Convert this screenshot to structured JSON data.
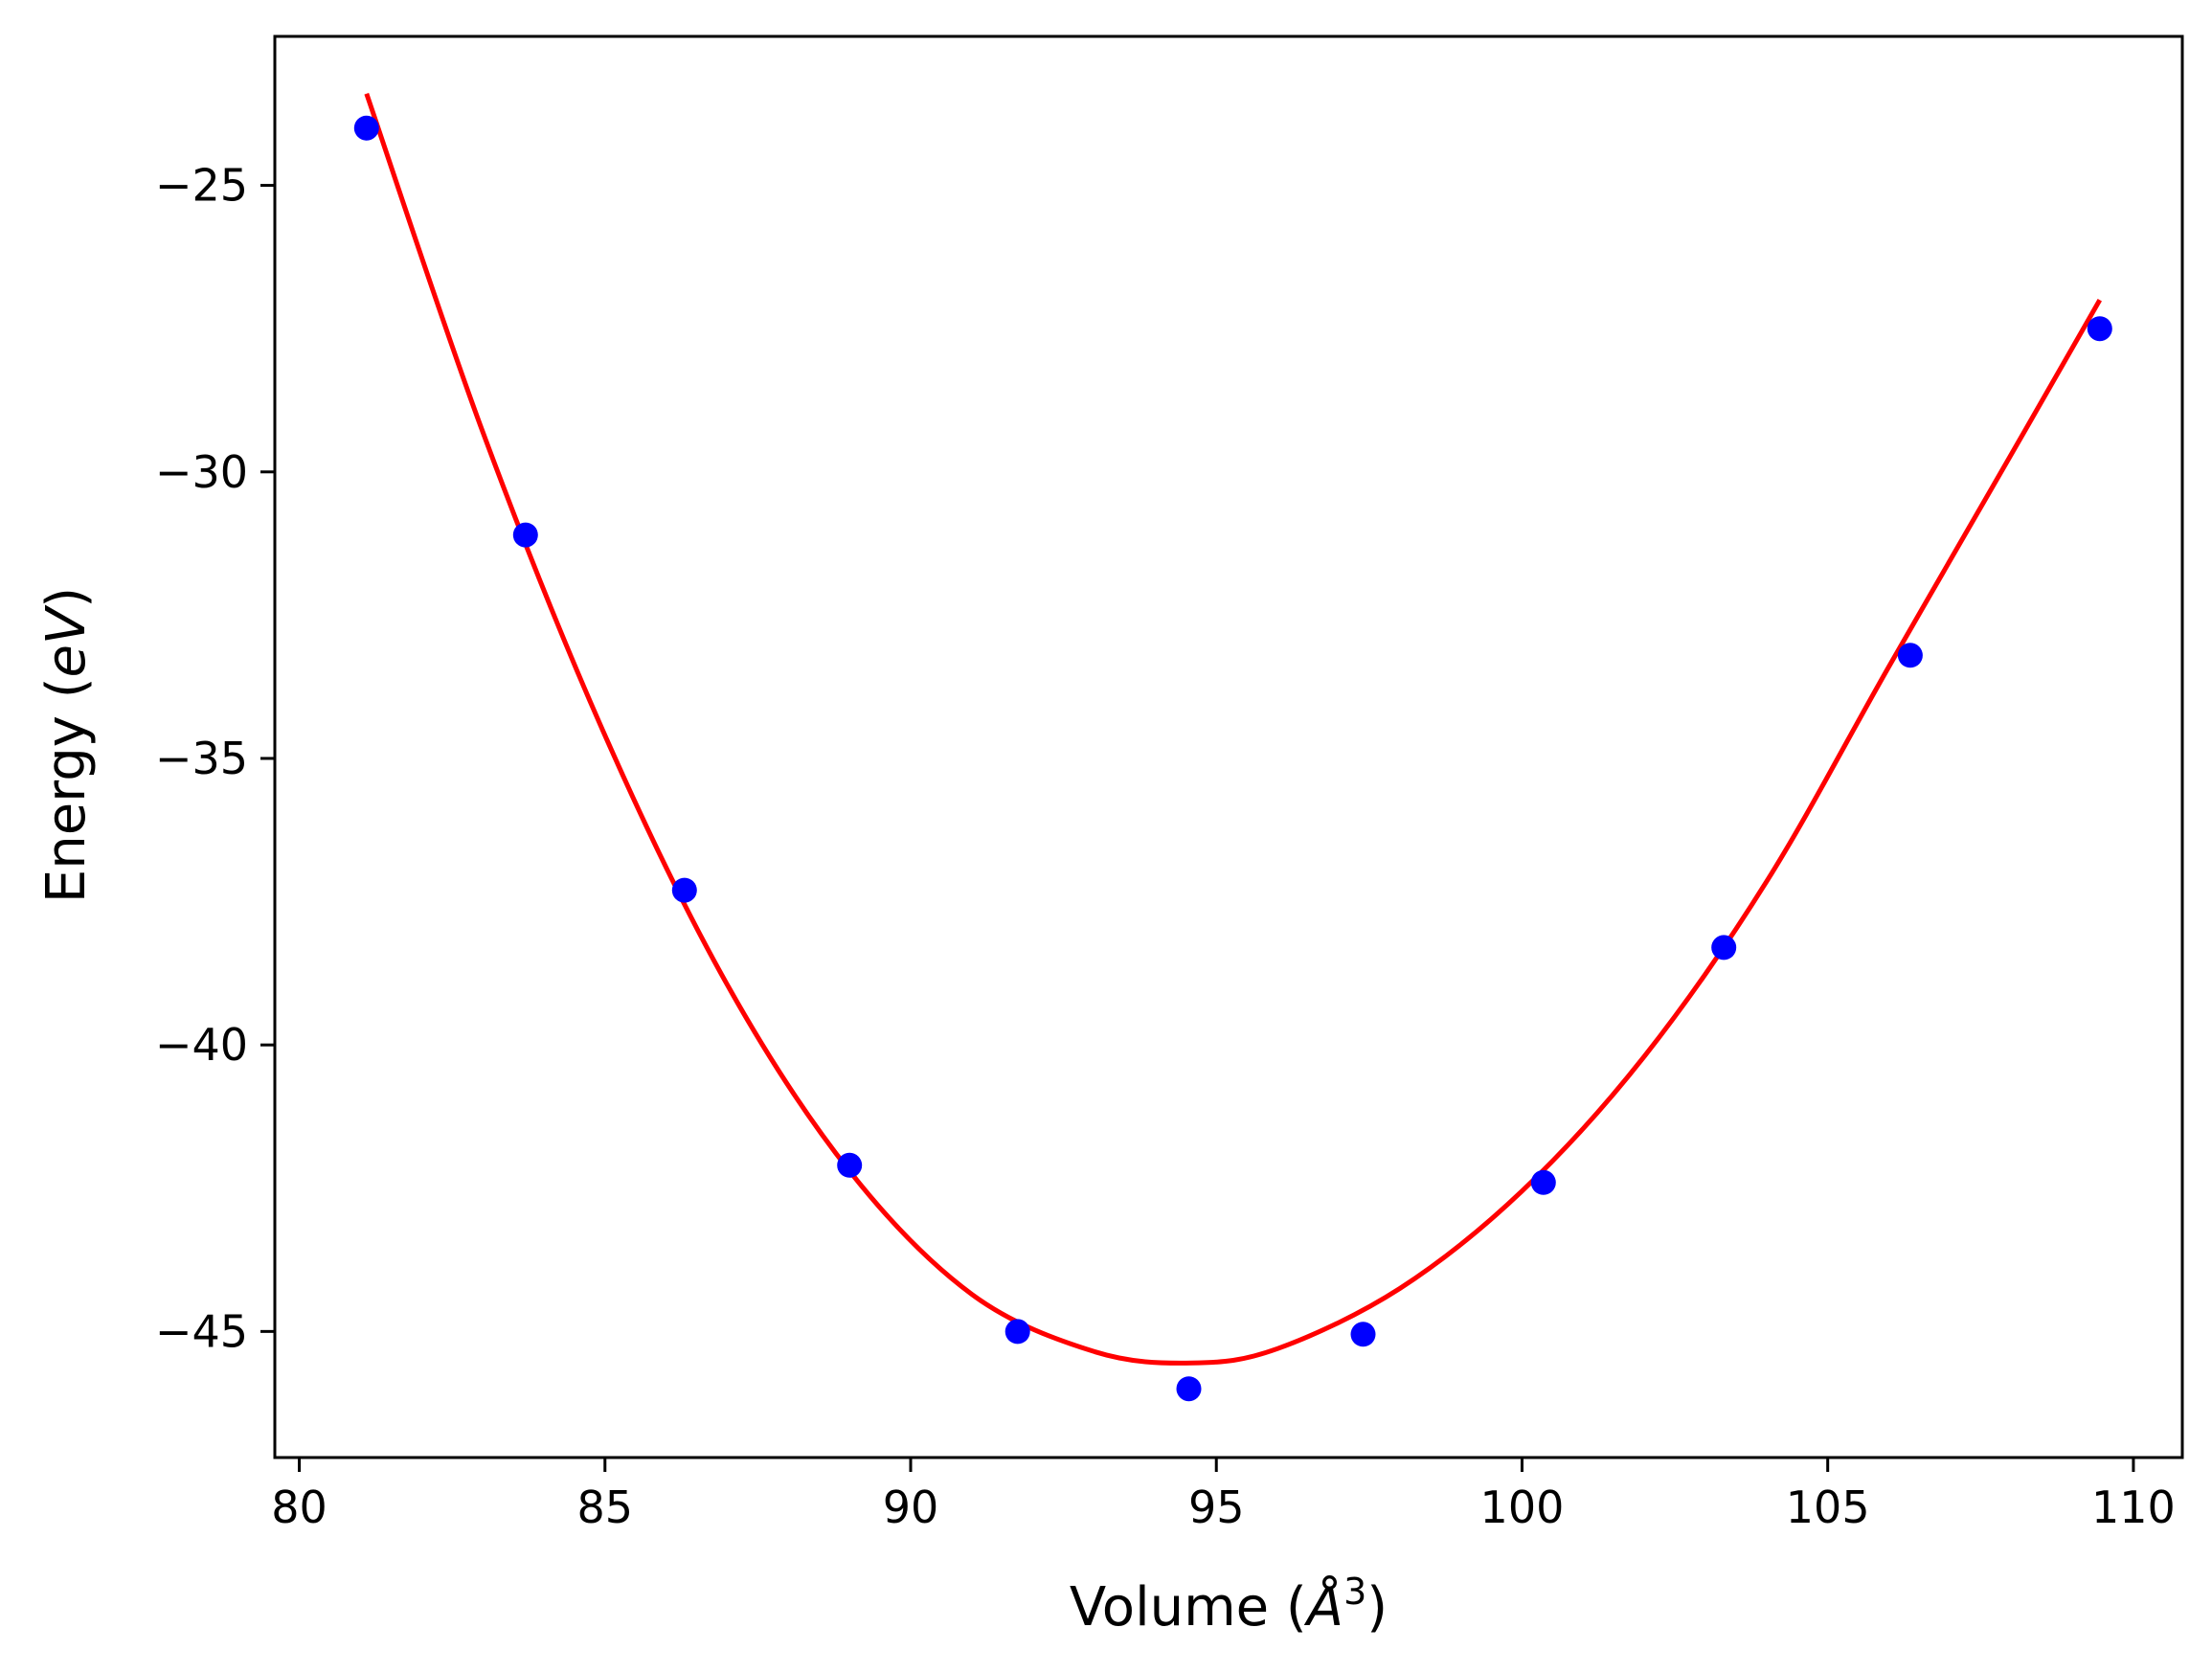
{
  "chart_data": {
    "type": "scatter",
    "xlabel": "Volume",
    "xlabel_unit": "Å",
    "xlabel_exponent": "3",
    "ylabel": "Energy",
    "ylabel_unit": "eV",
    "xlim": [
      79.6,
      110.8
    ],
    "ylim": [
      -47.2,
      -22.4
    ],
    "x_ticks": [
      80,
      85,
      90,
      95,
      100,
      105,
      110
    ],
    "y_ticks": [
      -45,
      -40,
      -35,
      -30,
      -25
    ],
    "grid": false,
    "legend": "none",
    "series": [
      {
        "kind": "points",
        "color": "#0000ff",
        "x": [
          81.1,
          83.7,
          86.3,
          89.0,
          91.75,
          94.55,
          97.4,
          100.35,
          103.3,
          106.35,
          109.45
        ],
        "y": [
          -24.0,
          -31.1,
          -37.3,
          -42.1,
          -45.0,
          -46.0,
          -45.05,
          -42.4,
          -38.3,
          -33.2,
          -27.5
        ]
      },
      {
        "kind": "fit-line",
        "color": "#ff0000",
        "x": [
          81.1,
          83.0,
          85.0,
          87.0,
          89.0,
          91.0,
          93.0,
          94.6,
          96.0,
          98.0,
          100.0,
          102.0,
          104.0,
          106.0,
          108.0,
          109.45
        ],
        "y": [
          -23.4,
          -29.3,
          -34.6,
          -38.95,
          -42.2,
          -44.35,
          -45.35,
          -45.55,
          -45.3,
          -44.25,
          -42.55,
          -40.2,
          -37.15,
          -33.4,
          -29.7,
          -27.0
        ]
      }
    ]
  }
}
